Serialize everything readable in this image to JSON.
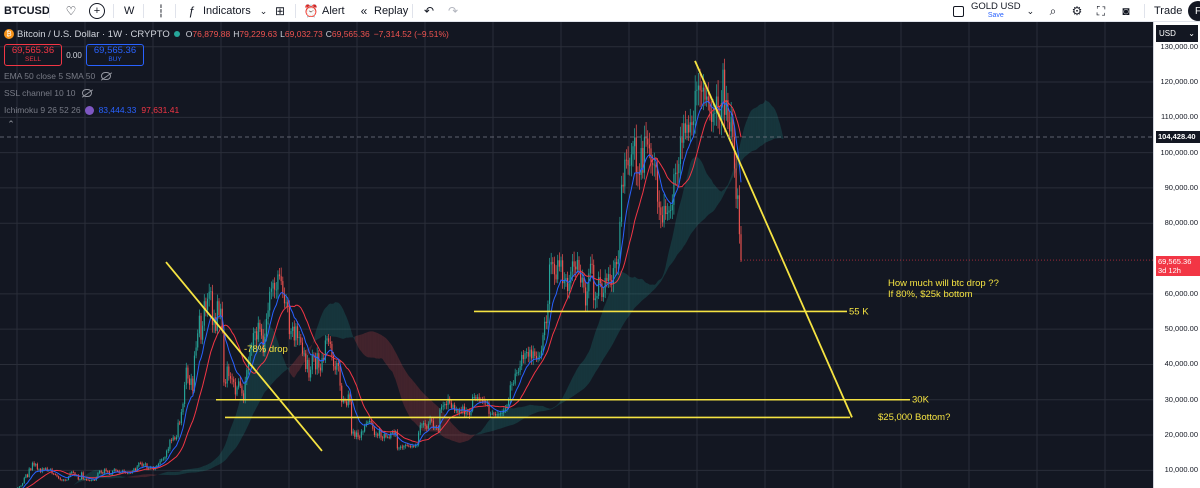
{
  "toolbar": {
    "symbol": "BTCUSD",
    "interval": "W",
    "indicators_label": "Indicators",
    "alert_label": "Alert",
    "replay_label": "Replay",
    "layout_name": "GOLD USD",
    "save_label": "Save",
    "trade_label": "Trade",
    "avatar_letter": "F",
    "icons": [
      "heart-icon",
      "plus-icon",
      "bar-style-icon",
      "indicators-icon",
      "layout-icon",
      "alert-icon",
      "replay-icon",
      "undo-icon",
      "redo-icon",
      "search-icon",
      "settings-icon",
      "fullscreen-icon",
      "camera-icon"
    ]
  },
  "legend": {
    "title": "Bitcoin / U.S. Dollar · 1W · CRYPTO",
    "o_key": "O",
    "o_val": "76,879.88",
    "h_key": "H",
    "h_val": "79,229.63",
    "l_key": "L",
    "l_val": "69,032.73",
    "c_key": "C",
    "c_val": "69,565.36",
    "change": "−7,314.52 (−9.51%)",
    "sell_price": "69,565.36",
    "sell_label": "SELL",
    "spread": "0.00",
    "buy_price": "69,565.36",
    "buy_label": "BUY",
    "indicators": [
      {
        "label": "EMA 50 close 5 SMA 50"
      },
      {
        "label": "SSL channel 10 10"
      },
      {
        "label": "Ichimoku 9 26 52 26",
        "v1": "83,444.33",
        "v2": "97,631.41"
      }
    ]
  },
  "price_scale": {
    "currency": "USD",
    "ticks": [
      "130,000.00",
      "120,000.00",
      "110,000.00",
      "100,000.00",
      "90,000.00",
      "80,000.00",
      "60,000.00",
      "50,000.00",
      "40,000.00",
      "30,000.00",
      "20,000.00",
      "10,000.00"
    ],
    "crosshair_label": "104,428.40",
    "current_price": "69,565.36",
    "countdown": "3d 12h"
  },
  "colors": {
    "up": "#26a69a",
    "down": "#ef5350",
    "annotation": "#f5e342",
    "ema": "#2962ff",
    "sma": "#f23645",
    "background": "#131722"
  },
  "chart_data": {
    "type": "candlestick",
    "ylim": [
      5000,
      137000
    ],
    "grid": true,
    "approx_weekly_close": [
      3700,
      3600,
      3500,
      3450,
      3800,
      4000,
      3950,
      4100,
      4500,
      5100,
      5400,
      5700,
      6300,
      7900,
      8800,
      8100,
      10500,
      10100,
      12100,
      11400,
      11800,
      10300,
      10400,
      9600,
      10500,
      10200,
      10600,
      9800,
      10100,
      10300,
      9100,
      8900,
      8800,
      8300,
      7800,
      7400,
      7200,
      7350,
      7200,
      7300,
      8200,
      9200,
      9600,
      9400,
      8500,
      8650,
      7400,
      7550,
      9400,
      7500,
      7500,
      7300,
      7200,
      7000,
      7200,
      7300,
      7200,
      8000,
      9300,
      9800,
      9400,
      9200,
      10300,
      9800,
      9700,
      8800,
      8900,
      9800,
      10300,
      9900,
      9800,
      9300,
      9500,
      9900,
      9600,
      9400,
      9300,
      9300,
      9200,
      9700,
      10500,
      10000,
      11100,
      12100,
      12000,
      11300,
      11700,
      11900,
      10500,
      10700,
      10900,
      10900,
      10200,
      10800,
      11300,
      11800,
      12700,
      13100,
      13300,
      13800,
      15500,
      16100,
      18600,
      18500,
      19300,
      18800,
      19400,
      23500,
      23400,
      26500,
      28800,
      34200,
      39100,
      36000,
      34200,
      36000,
      32500,
      42500,
      44800,
      48800,
      53800,
      47000,
      51000,
      57900,
      55400,
      58600,
      60600,
      60700,
      51200,
      53400,
      49500,
      57900,
      54000,
      55800,
      50000,
      34900,
      34600,
      39400,
      36700,
      36000,
      35800,
      35000,
      31500,
      33500,
      35200,
      34000,
      31800,
      29800,
      35200,
      38400,
      41000,
      44100,
      45200,
      48900,
      49400,
      47100,
      51800,
      50100,
      48200,
      43300,
      47800,
      52900,
      55300,
      60600,
      61500,
      63100,
      61200,
      61200,
      65500,
      65000,
      63600,
      60000,
      57300,
      57600,
      56300,
      48600,
      49500,
      50700,
      46800,
      50800,
      47500,
      47700,
      46200,
      43100,
      43100,
      38700,
      41300,
      36300,
      38500,
      42700,
      42200,
      38600,
      43200,
      39100,
      38300,
      41800,
      41200,
      46800,
      47400,
      46400,
      45800,
      42400,
      39500,
      38500,
      40400,
      39600,
      34000,
      29300,
      30100,
      29500,
      28400,
      31500,
      29300,
      20400,
      21000,
      19500,
      20700,
      19500,
      19300,
      21000,
      21000,
      22600,
      23300,
      23700,
      24000,
      23400,
      21800,
      20000,
      20200,
      19800,
      21400,
      19300,
      19100,
      20300,
      19400,
      19400,
      19200,
      20600,
      20800,
      20100,
      21000,
      16200,
      16400,
      16700,
      16500,
      16900,
      17100,
      17000,
      16800,
      16600,
      16900,
      16800,
      17000,
      17300,
      20700,
      22800,
      23000,
      23400,
      22600,
      21800,
      23200,
      24500,
      24000,
      21900,
      22300,
      22000,
      21300,
      27200,
      28000,
      28400,
      28800,
      28500,
      30300,
      29100,
      27700,
      28500,
      26800,
      27100,
      26300,
      27000,
      26800,
      28100,
      25900,
      26800,
      26700,
      25700,
      26900,
      30800,
      30800,
      30300,
      30700,
      30100,
      29900,
      29800,
      29600,
      29200,
      29200,
      26000,
      26000,
      26100,
      25900,
      25800,
      25900,
      26000,
      26100,
      26200,
      27200,
      27600,
      28400,
      29900,
      34100,
      34400,
      34600,
      37400,
      37700,
      37900,
      39500,
      42700,
      41500,
      43200,
      43500,
      42200,
      44200,
      41700,
      43700,
      42400,
      41400,
      42000,
      42500,
      43900,
      48300,
      52100,
      51700,
      57100,
      68300,
      69000,
      68500,
      65500,
      64100,
      69500,
      67700,
      69500,
      63000,
      63900,
      64500,
      60800,
      63000,
      66300,
      69200,
      67700,
      66900,
      69600,
      66600,
      63200,
      64600,
      61800,
      56700,
      60700,
      65800,
      68500,
      68200,
      58200,
      58700,
      59400,
      64700,
      63000,
      59100,
      60300,
      64500,
      63600,
      65600,
      63900,
      62800,
      67300,
      69000,
      68400,
      69900,
      80400,
      90900,
      90400,
      98000,
      97900,
      96400,
      96400,
      99500,
      101800,
      104300,
      94500,
      94400,
      93700,
      101300,
      94300,
      104500,
      104000,
      102300,
      101200,
      97000,
      96600,
      96600,
      95800,
      86100,
      84500,
      82300,
      80200,
      84900,
      82600,
      83000,
      83600,
      83700,
      85200,
      93900,
      94300,
      94200,
      96800,
      104200,
      102800,
      108300,
      105600,
      107900,
      105700,
      108600,
      107800,
      108900,
      117500,
      117800,
      119000,
      117600,
      117300,
      118400,
      115000,
      115900,
      114200,
      111600,
      108700,
      111000,
      111200,
      115900,
      110700,
      109300,
      114000,
      123500,
      110700,
      114900,
      108600,
      106000,
      110200,
      104400,
      95500,
      86900,
      87900,
      76900,
      69565.36
    ],
    "last_candle": {
      "o": 76879.88,
      "h": 79229.63,
      "l": 69032.73,
      "c": 69565.36
    },
    "horizontal_lines": [
      {
        "price": 55000,
        "label": "55 K"
      },
      {
        "price": 30000,
        "label": "30K"
      },
      {
        "price": 25000,
        "label": ""
      }
    ],
    "trend_lines": [
      {
        "from": [
          69000,
          0
        ],
        "to": [
          15500,
          1
        ],
        "label": "-78% drop"
      },
      {
        "from": [
          126000,
          0
        ],
        "to": [
          25000,
          1
        ],
        "label": ""
      }
    ],
    "annotations": [
      {
        "text": "How much will btc drop ??"
      },
      {
        "text": "If 80%, $25k bottom"
      },
      {
        "text": "$25,000 Bottom?"
      }
    ]
  }
}
